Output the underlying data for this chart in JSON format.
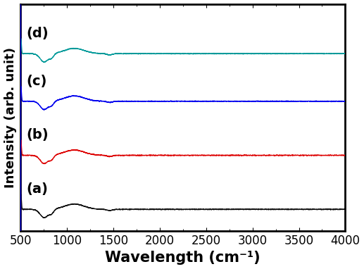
{
  "title": "",
  "xlabel": "Wavelength (cm⁻¹)",
  "ylabel": "Intensity (arb. unit)",
  "xlim": [
    500,
    4000
  ],
  "plot_bg": "#000000",
  "fig_bg": "#ffffff",
  "line_colors": [
    "#111111",
    "#dd0000",
    "#0000ee",
    "#009999"
  ],
  "labels": [
    "(a)",
    "(b)",
    "(c)",
    "(d)"
  ],
  "xlabel_fontsize": 15,
  "ylabel_fontsize": 13,
  "tick_fontsize": 12,
  "label_fontsize": 14,
  "base_levels": [
    0.1,
    0.35,
    0.6,
    0.82
  ],
  "spike_amp": 0.07,
  "dip_amp": 0.05,
  "bump_amp": 0.04
}
